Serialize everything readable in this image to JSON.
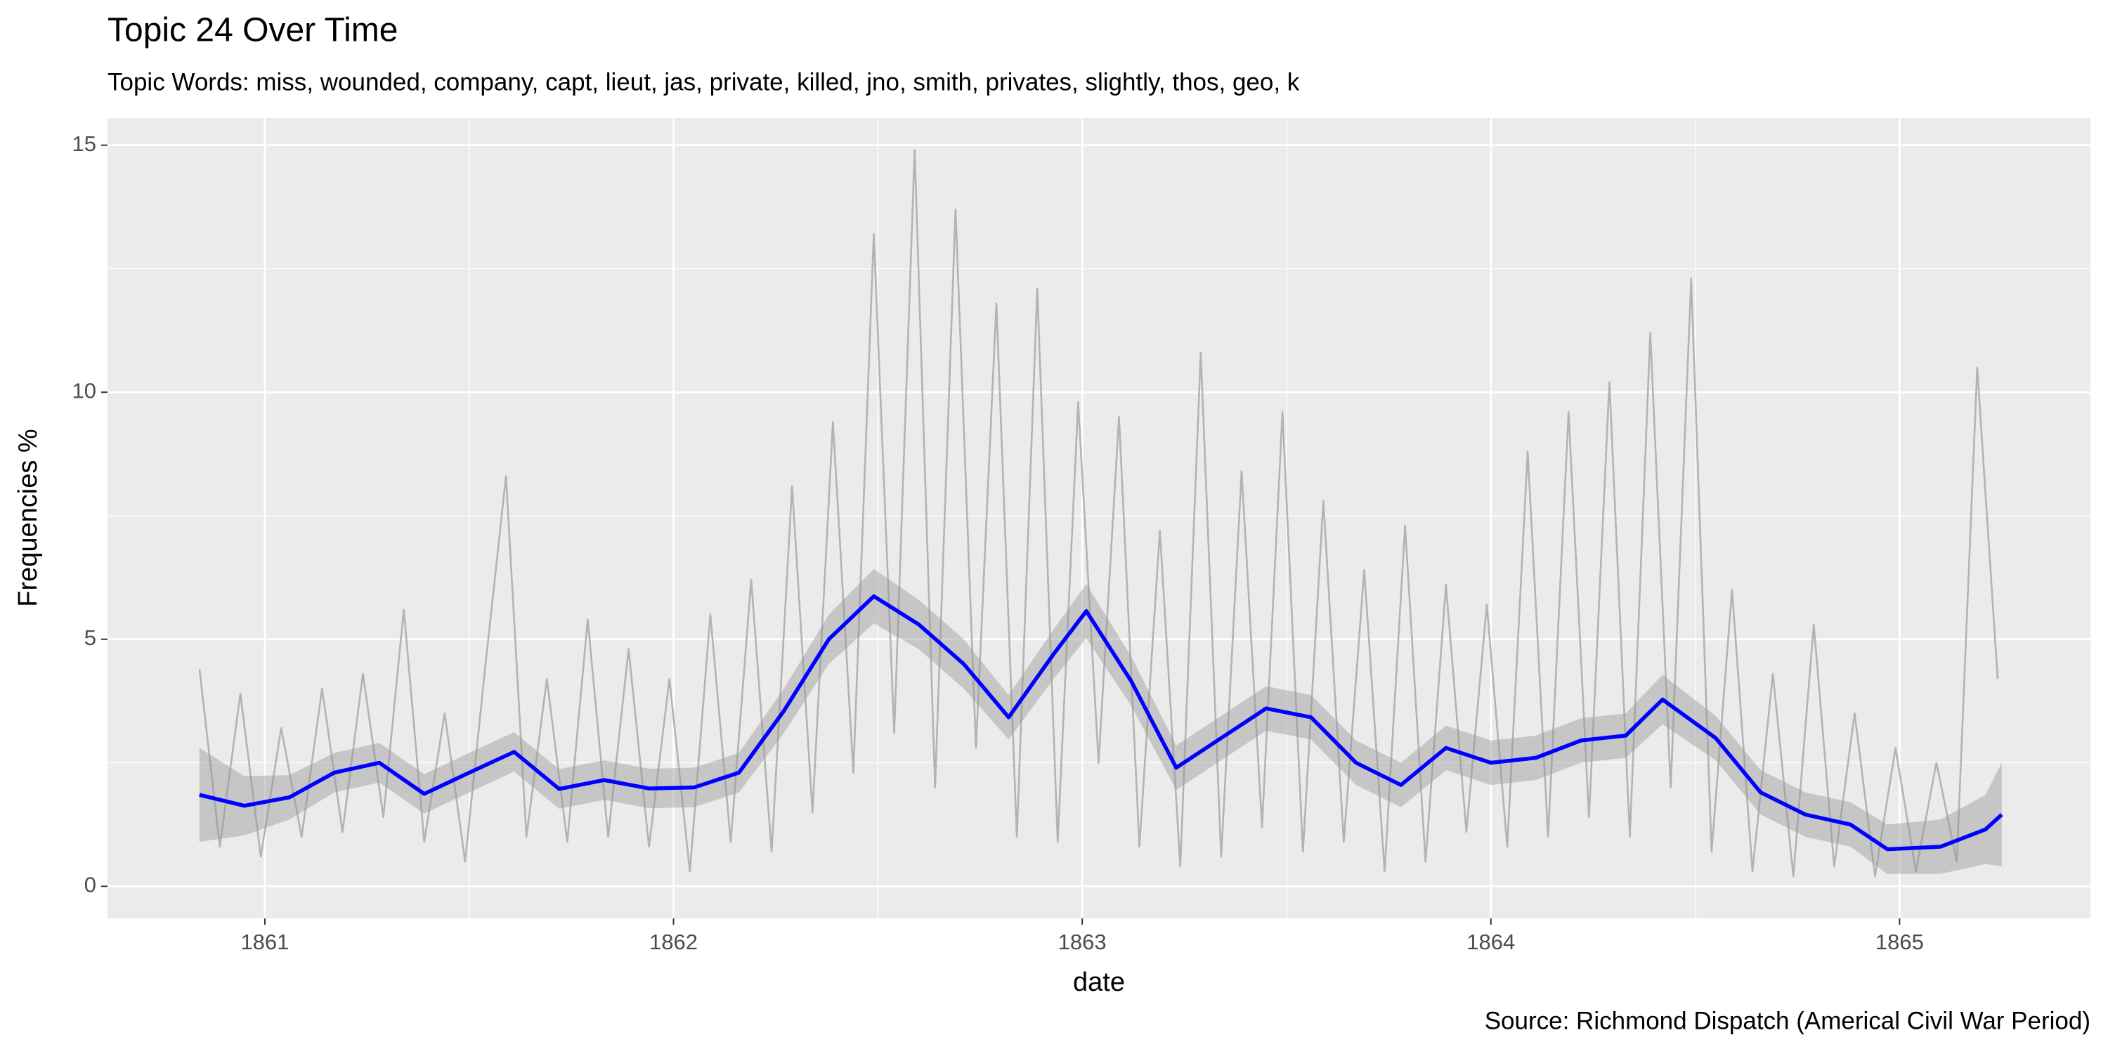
{
  "chart_data": {
    "type": "line",
    "title": "Topic 24 Over Time",
    "subtitle": "Topic Words: miss, wounded, company, capt, lieut, jas, private, killed, jno, smith, privates, slightly, thos, geo, k",
    "caption": "Source: Richmond Dispatch (Americal Civil War Period)",
    "x_label": "date",
    "y_label": "Frequencies %",
    "xlim": [
      1860.615,
      1865.467
    ],
    "xticks": [
      1861,
      1862,
      1863,
      1864,
      1865
    ],
    "ylim": [
      -0.65,
      15.55
    ],
    "yticks": [
      0,
      5,
      10,
      15
    ],
    "grid": true,
    "series": [
      {
        "color": "#b3b3b3",
        "x": [
          1860.84,
          1860.89,
          1860.94,
          1860.99,
          1861.04,
          1861.09,
          1861.14,
          1861.19,
          1861.24,
          1861.29,
          1861.34,
          1861.39,
          1861.44,
          1861.49,
          1861.54,
          1861.59,
          1861.64,
          1861.69,
          1861.74,
          1861.79,
          1861.84,
          1861.89,
          1861.94,
          1861.99,
          1862.04,
          1862.09,
          1862.14,
          1862.19,
          1862.24,
          1862.29,
          1862.34,
          1862.39,
          1862.44,
          1862.49,
          1862.54,
          1862.59,
          1862.64,
          1862.69,
          1862.74,
          1862.79,
          1862.84,
          1862.89,
          1862.94,
          1862.99,
          1863.04,
          1863.09,
          1863.14,
          1863.19,
          1863.24,
          1863.29,
          1863.34,
          1863.39,
          1863.44,
          1863.49,
          1863.54,
          1863.59,
          1863.64,
          1863.69,
          1863.74,
          1863.79,
          1863.84,
          1863.89,
          1863.94,
          1863.99,
          1864.04,
          1864.09,
          1864.14,
          1864.19,
          1864.24,
          1864.29,
          1864.34,
          1864.39,
          1864.44,
          1864.49,
          1864.54,
          1864.59,
          1864.64,
          1864.69,
          1864.74,
          1864.79,
          1864.84,
          1864.89,
          1864.94,
          1864.99,
          1865.04,
          1865.09,
          1865.14,
          1865.19,
          1865.24
        ],
        "values": [
          4.4,
          0.8,
          3.9,
          0.6,
          3.2,
          1.0,
          4.0,
          1.1,
          4.3,
          1.4,
          5.6,
          0.9,
          3.5,
          0.5,
          4.5,
          8.3,
          1.0,
          4.2,
          0.9,
          5.4,
          1.0,
          4.8,
          0.8,
          4.2,
          0.3,
          5.5,
          0.9,
          6.2,
          0.7,
          8.1,
          1.5,
          9.4,
          2.3,
          13.2,
          3.1,
          14.9,
          2.0,
          13.7,
          2.8,
          11.8,
          1.0,
          12.1,
          0.9,
          9.8,
          2.5,
          9.5,
          0.8,
          7.2,
          0.4,
          10.8,
          0.6,
          8.4,
          1.2,
          9.6,
          0.7,
          7.8,
          0.9,
          6.4,
          0.3,
          7.3,
          0.5,
          6.1,
          1.1,
          5.7,
          0.8,
          8.8,
          1.0,
          9.6,
          1.4,
          10.2,
          1.0,
          11.2,
          2.0,
          12.3,
          0.7,
          6.0,
          0.3,
          4.3,
          0.2,
          5.3,
          0.4,
          3.5,
          0.2,
          2.8,
          0.3,
          2.5,
          0.5,
          10.5,
          4.2
        ]
      },
      {
        "color": "#0000ff",
        "band_color": "#999999",
        "x": [
          1860.84,
          1860.95,
          1861.06,
          1861.17,
          1861.28,
          1861.39,
          1861.5,
          1861.61,
          1861.72,
          1861.83,
          1861.94,
          1862.05,
          1862.16,
          1862.27,
          1862.38,
          1862.49,
          1862.6,
          1862.71,
          1862.82,
          1862.93,
          1863.01,
          1863.12,
          1863.23,
          1863.34,
          1863.45,
          1863.56,
          1863.67,
          1863.78,
          1863.89,
          1864.0,
          1864.11,
          1864.22,
          1864.33,
          1864.42,
          1864.55,
          1864.66,
          1864.77,
          1864.88,
          1864.97,
          1865.1,
          1865.21,
          1865.25
        ],
        "values": [
          1.85,
          1.63,
          1.8,
          2.3,
          2.5,
          1.87,
          2.3,
          2.72,
          1.97,
          2.15,
          1.98,
          2.0,
          2.3,
          3.55,
          5.0,
          5.87,
          5.3,
          4.5,
          3.42,
          4.7,
          5.57,
          4.15,
          2.4,
          3.0,
          3.6,
          3.42,
          2.5,
          2.05,
          2.8,
          2.5,
          2.6,
          2.95,
          3.05,
          3.78,
          3.0,
          1.9,
          1.45,
          1.25,
          0.75,
          0.8,
          1.15,
          1.45
        ],
        "lower": [
          0.9,
          1.03,
          1.35,
          1.9,
          2.1,
          1.47,
          1.9,
          2.32,
          1.57,
          1.75,
          1.58,
          1.6,
          1.9,
          3.1,
          4.5,
          5.32,
          4.8,
          4.0,
          2.97,
          4.2,
          5.02,
          3.65,
          1.95,
          2.55,
          3.15,
          2.97,
          2.05,
          1.6,
          2.35,
          2.05,
          2.15,
          2.5,
          2.6,
          3.28,
          2.55,
          1.45,
          1.0,
          0.8,
          0.25,
          0.25,
          0.45,
          0.4
        ],
        "upper": [
          2.8,
          2.23,
          2.25,
          2.7,
          2.9,
          2.27,
          2.7,
          3.12,
          2.37,
          2.55,
          2.38,
          2.4,
          2.7,
          4.0,
          5.5,
          6.42,
          5.8,
          5.0,
          3.87,
          5.2,
          6.12,
          4.65,
          2.85,
          3.45,
          4.05,
          3.87,
          2.95,
          2.5,
          3.25,
          2.95,
          3.05,
          3.4,
          3.5,
          4.28,
          3.45,
          2.35,
          1.9,
          1.7,
          1.25,
          1.35,
          1.85,
          2.5
        ]
      }
    ]
  }
}
